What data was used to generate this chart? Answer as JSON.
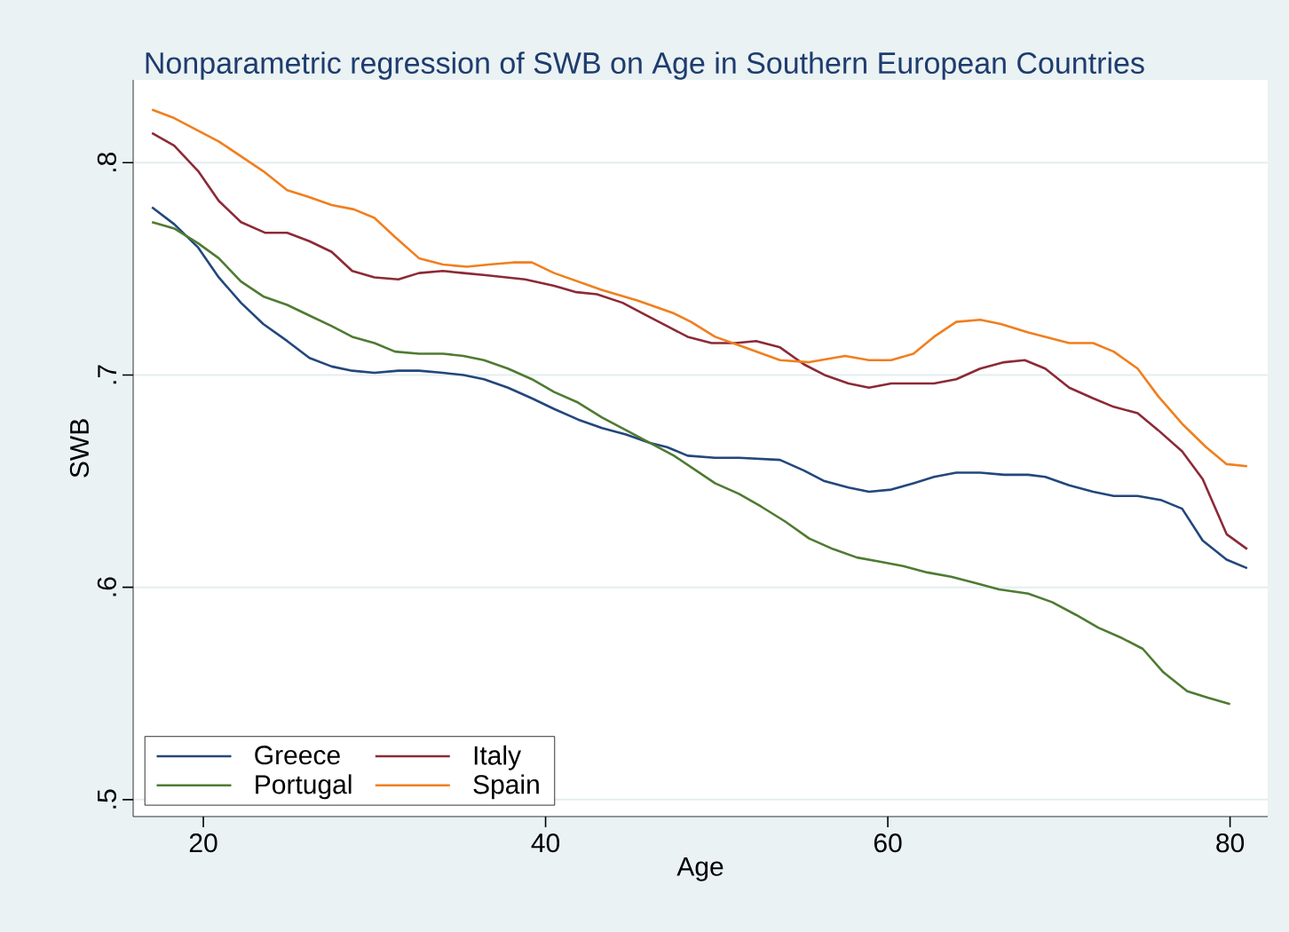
{
  "chart_data": {
    "type": "line",
    "title": "Nonparametric regression of SWB on Age in Southern European Countries",
    "xlabel": "Age",
    "ylabel": "SWB",
    "xlim": [
      15.9,
      82.2
    ],
    "ylim": [
      0.492,
      0.839
    ],
    "xticks": [
      20,
      40,
      60,
      80
    ],
    "yticks": [
      {
        "value": 0.5,
        "label": ".5"
      },
      {
        "value": 0.6,
        "label": ".6"
      },
      {
        "value": 0.7,
        "label": ".7"
      },
      {
        "value": 0.8,
        "label": ".8"
      }
    ],
    "grid": "y",
    "legend": "bottom left",
    "marker": "none",
    "line_style": "solid",
    "series": [
      {
        "name": "Greece",
        "color": "#23477c",
        "x": [
          17,
          18.3,
          19.7,
          20.9,
          22.2,
          23.5,
          24.9,
          26.2,
          27.5,
          28.7,
          30,
          31.4,
          32.6,
          34,
          35.2,
          36.4,
          37.8,
          39.2,
          40.5,
          41.9,
          43.3,
          44.7,
          46.1,
          47.1,
          48.3,
          49.9,
          51.3,
          53.7,
          55.1,
          56.3,
          57.7,
          58.9,
          60.2,
          61.5,
          62.7,
          64,
          65.4,
          66.8,
          68.2,
          69.2,
          70.6,
          72,
          73.2,
          74.6,
          76,
          77.2,
          78.4,
          79.8,
          81
        ],
        "values": [
          0.779,
          0.771,
          0.76,
          0.746,
          0.734,
          0.724,
          0.716,
          0.708,
          0.704,
          0.702,
          0.701,
          0.702,
          0.702,
          0.701,
          0.7,
          0.698,
          0.694,
          0.689,
          0.684,
          0.679,
          0.675,
          0.672,
          0.668,
          0.666,
          0.662,
          0.661,
          0.661,
          0.66,
          0.655,
          0.65,
          0.647,
          0.645,
          0.646,
          0.649,
          0.652,
          0.654,
          0.654,
          0.653,
          0.653,
          0.652,
          0.648,
          0.645,
          0.643,
          0.643,
          0.641,
          0.637,
          0.622,
          0.613,
          0.609
        ]
      },
      {
        "name": "Italy",
        "color": "#8c2a36",
        "x": [
          17,
          18.3,
          19.7,
          20.9,
          22.2,
          23.6,
          24.9,
          26.2,
          27.5,
          28.7,
          30,
          31.4,
          32.6,
          34,
          35.2,
          36.5,
          38.8,
          40.5,
          41.8,
          43,
          44.5,
          45.9,
          47.1,
          48.3,
          49.7,
          51.1,
          52.3,
          53.7,
          55.1,
          56.3,
          57.7,
          58.9,
          60.2,
          61.5,
          62.7,
          64,
          65.4,
          66.8,
          68,
          69.2,
          70.6,
          72,
          73.2,
          74.6,
          75.8,
          77.2,
          78.4,
          79.8,
          81
        ],
        "values": [
          0.814,
          0.808,
          0.796,
          0.782,
          0.772,
          0.767,
          0.767,
          0.763,
          0.758,
          0.749,
          0.746,
          0.745,
          0.748,
          0.749,
          0.748,
          0.747,
          0.745,
          0.742,
          0.739,
          0.738,
          0.734,
          0.728,
          0.723,
          0.718,
          0.715,
          0.715,
          0.716,
          0.713,
          0.705,
          0.7,
          0.696,
          0.694,
          0.696,
          0.696,
          0.696,
          0.698,
          0.703,
          0.706,
          0.707,
          0.703,
          0.694,
          0.689,
          0.685,
          0.682,
          0.674,
          0.664,
          0.651,
          0.625,
          0.618
        ]
      },
      {
        "name": "Portugal",
        "color": "#4e7b32",
        "x": [
          17,
          18.3,
          19.7,
          20.9,
          22.2,
          23.5,
          24.9,
          26.2,
          27.5,
          28.7,
          30,
          31.2,
          32.6,
          34,
          35.2,
          36.4,
          37.8,
          39.2,
          40.5,
          41.9,
          43.3,
          44.7,
          46.1,
          47.5,
          48.8,
          49.9,
          51.3,
          52.6,
          54,
          55.4,
          56.8,
          58.2,
          59.6,
          60.9,
          62.3,
          63.7,
          65.1,
          66.5,
          68.2,
          69.6,
          71,
          72.3,
          73.7,
          74.9,
          76.1,
          77.5,
          78.7,
          80
        ],
        "values": [
          0.772,
          0.769,
          0.762,
          0.755,
          0.744,
          0.737,
          0.733,
          0.728,
          0.723,
          0.718,
          0.715,
          0.711,
          0.71,
          0.71,
          0.709,
          0.707,
          0.703,
          0.698,
          0.692,
          0.687,
          0.68,
          0.674,
          0.668,
          0.662,
          0.655,
          0.649,
          0.644,
          0.638,
          0.631,
          0.623,
          0.618,
          0.614,
          0.612,
          0.61,
          0.607,
          0.605,
          0.602,
          0.599,
          0.597,
          0.593,
          0.587,
          0.581,
          0.576,
          0.571,
          0.56,
          0.551,
          0.548,
          0.545
        ]
      },
      {
        "name": "Spain",
        "color": "#f07f1e",
        "x": [
          17,
          18.3,
          20.9,
          23.5,
          24.9,
          26.1,
          27.5,
          28.8,
          30,
          31.2,
          32.6,
          34,
          35.4,
          36.7,
          38.1,
          39.2,
          40.5,
          41.9,
          43.3,
          45.4,
          47.5,
          48.5,
          49.9,
          51.3,
          53.7,
          55.4,
          57.5,
          58.9,
          60.2,
          61.5,
          62.7,
          64,
          65.4,
          66.6,
          68.2,
          70.6,
          72,
          73.2,
          74.6,
          75.8,
          77.2,
          78.6,
          79.8,
          81
        ],
        "values": [
          0.825,
          0.821,
          0.81,
          0.796,
          0.787,
          0.784,
          0.78,
          0.778,
          0.774,
          0.765,
          0.755,
          0.752,
          0.751,
          0.752,
          0.753,
          0.753,
          0.748,
          0.744,
          0.74,
          0.735,
          0.729,
          0.725,
          0.718,
          0.714,
          0.707,
          0.706,
          0.709,
          0.707,
          0.707,
          0.71,
          0.718,
          0.725,
          0.726,
          0.724,
          0.72,
          0.715,
          0.715,
          0.711,
          0.703,
          0.69,
          0.677,
          0.666,
          0.658,
          0.657
        ]
      }
    ]
  }
}
